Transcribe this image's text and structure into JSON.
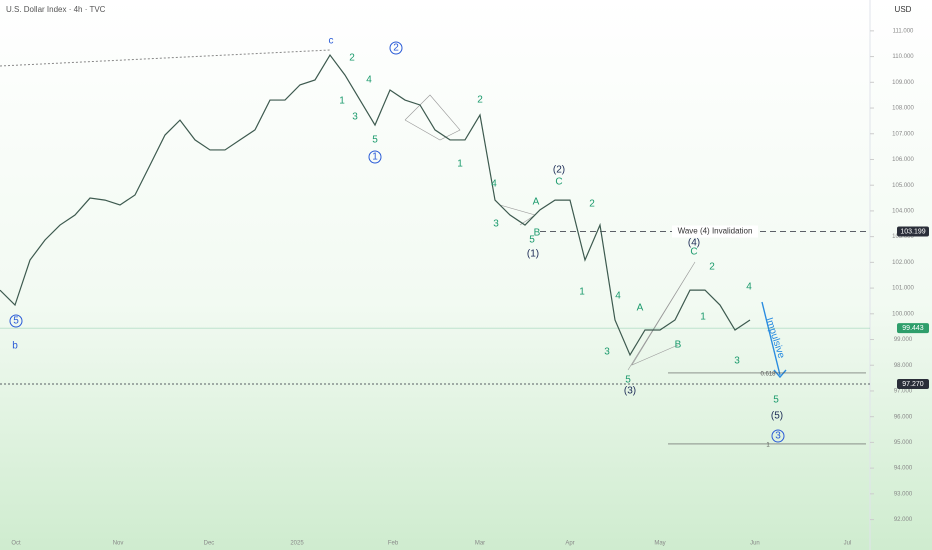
{
  "chart_data": {
    "type": "line",
    "title": "U.S. Dollar Index · 4h · TVC",
    "currency": "USD",
    "color": "#3d5a4f",
    "values": [
      100.92,
      100.34,
      102.09,
      102.87,
      103.45,
      103.84,
      104.5,
      104.42,
      104.23,
      104.62,
      105.78,
      106.95,
      107.53,
      106.76,
      106.37,
      106.37,
      106.76,
      107.15,
      108.31,
      108.31,
      108.9,
      109.09,
      110.06,
      109.28,
      108.31,
      107.34,
      108.7,
      108.31,
      108.12,
      107.15,
      106.76,
      106.76,
      107.73,
      104.42,
      103.84,
      103.45,
      104.04,
      104.42,
      104.42,
      102.09,
      103.45,
      99.76,
      98.4,
      99.37,
      99.37,
      99.76,
      100.92,
      100.92,
      100.34,
      99.37,
      99.76
    ],
    "ylim": [
      91.4,
      112.2
    ],
    "yticks": [
      {
        "value": 92,
        "label": "92.000"
      },
      {
        "value": 93,
        "label": "93.000"
      },
      {
        "value": 94,
        "label": "94.000"
      },
      {
        "value": 95,
        "label": "95.000"
      },
      {
        "value": 96,
        "label": "96.000"
      },
      {
        "value": 97,
        "label": "97.000"
      },
      {
        "value": 98,
        "label": "98.000"
      },
      {
        "value": 99,
        "label": "99.000"
      },
      {
        "value": 100,
        "label": "100.000"
      },
      {
        "value": 101,
        "label": "101.000"
      },
      {
        "value": 102,
        "label": "102.000"
      },
      {
        "value": 103,
        "label": "103.000"
      },
      {
        "value": 104,
        "label": "104.000"
      },
      {
        "value": 105,
        "label": "105.000"
      },
      {
        "value": 106,
        "label": "106.000"
      },
      {
        "value": 107,
        "label": "107.000"
      },
      {
        "value": 108,
        "label": "108.000"
      },
      {
        "value": 109,
        "label": "109.000"
      },
      {
        "value": 110,
        "label": "110.000"
      },
      {
        "value": 111,
        "label": "111.000"
      }
    ],
    "xticks": [
      {
        "value": 1.07,
        "label": "Oct"
      },
      {
        "value": 7.87,
        "label": "Nov"
      },
      {
        "value": 13.93,
        "label": "Dec"
      },
      {
        "value": 19.8,
        "label": "2025"
      },
      {
        "value": 26.2,
        "label": "Feb"
      },
      {
        "value": 32,
        "label": "Mar"
      },
      {
        "value": 38,
        "label": "Apr"
      },
      {
        "value": 44,
        "label": "May"
      },
      {
        "value": 50.33,
        "label": "Jun"
      },
      {
        "value": 56.5,
        "label": "Jul"
      }
    ],
    "price_lines": [
      {
        "name": "Wave (4) Invalidation",
        "value": 103.199,
        "label": "103.199",
        "color": "#2a2e39",
        "style": "dashed"
      },
      {
        "value": 99.443,
        "label": "99.443",
        "color": "#2e9e6b",
        "style": "solid"
      },
      {
        "value": 97.27,
        "label": "97.270",
        "color": "#2a2e39",
        "style": "dotted"
      }
    ],
    "fib_lines": [
      {
        "label": "0.618",
        "value": 97.7
      },
      {
        "label": "1",
        "value": 94.94
      }
    ],
    "wave_labels": [
      "c",
      "2",
      "4",
      "1",
      "3",
      "5",
      "2",
      "1",
      "2",
      "1",
      "4",
      "3",
      "A",
      "B",
      "5",
      "(1)",
      "(2)",
      "C",
      "2",
      "(4)",
      "C",
      "2",
      "1",
      "4",
      "A",
      "1",
      "B",
      "3",
      "3",
      "4",
      "5",
      "(3)",
      "5",
      "(5)",
      "3",
      "5",
      "b"
    ],
    "annotation": "Impulsive"
  }
}
